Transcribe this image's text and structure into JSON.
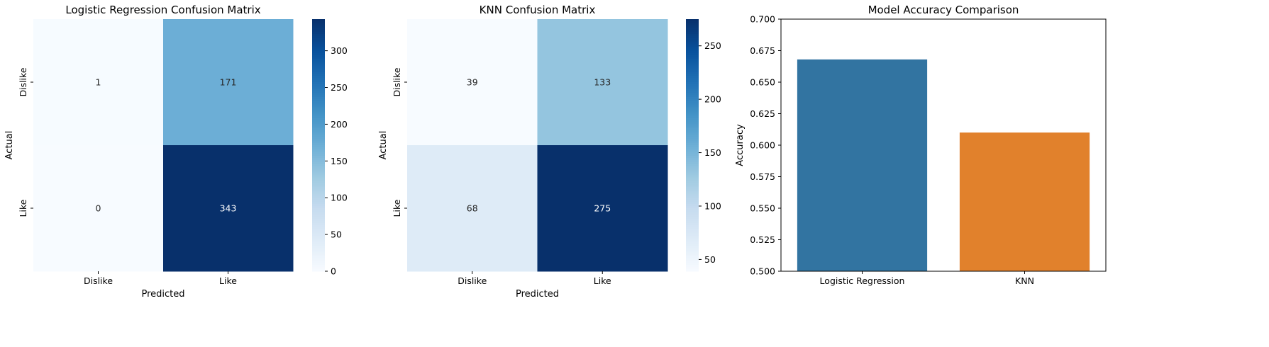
{
  "colors": {
    "cmap_low": "#f7fbff",
    "cmap_high": "#08306b",
    "bar_colors": [
      "#3274a1",
      "#e1812c"
    ],
    "text_dark": "#262626",
    "text_light": "#ffffff"
  },
  "chart_data": [
    {
      "type": "heatmap",
      "title": "Logistic Regression Confusion Matrix",
      "xlabel": "Predicted",
      "ylabel": "Actual",
      "x_categories": [
        "Dislike",
        "Like"
      ],
      "y_categories": [
        "Dislike",
        "Like"
      ],
      "values": [
        [
          1,
          171
        ],
        [
          0,
          343
        ]
      ],
      "colorbar": {
        "vmin": 0,
        "vmax": 343,
        "ticks": [
          0,
          50,
          100,
          150,
          200,
          250,
          300
        ]
      },
      "cmap": "Blues",
      "annotated": true
    },
    {
      "type": "heatmap",
      "title": "KNN Confusion Matrix",
      "xlabel": "Predicted",
      "ylabel": "Actual",
      "x_categories": [
        "Dislike",
        "Like"
      ],
      "y_categories": [
        "Dislike",
        "Like"
      ],
      "values": [
        [
          39,
          133
        ],
        [
          68,
          275
        ]
      ],
      "colorbar": {
        "vmin": 39,
        "vmax": 275,
        "ticks": [
          50,
          100,
          150,
          200,
          250
        ]
      },
      "cmap": "Blues",
      "annotated": true
    },
    {
      "type": "bar",
      "title": "Model Accuracy Comparison",
      "xlabel": "",
      "ylabel": "Accuracy",
      "categories": [
        "Logistic Regression",
        "KNN"
      ],
      "values": [
        0.668,
        0.61
      ],
      "ylim": [
        0.5,
        0.7
      ],
      "yticks": [
        0.5,
        0.525,
        0.55,
        0.575,
        0.6,
        0.625,
        0.65,
        0.675,
        0.7
      ],
      "ytick_labels": [
        "0.500",
        "0.525",
        "0.550",
        "0.575",
        "0.600",
        "0.625",
        "0.650",
        "0.675",
        "0.700"
      ],
      "grid": false
    }
  ]
}
